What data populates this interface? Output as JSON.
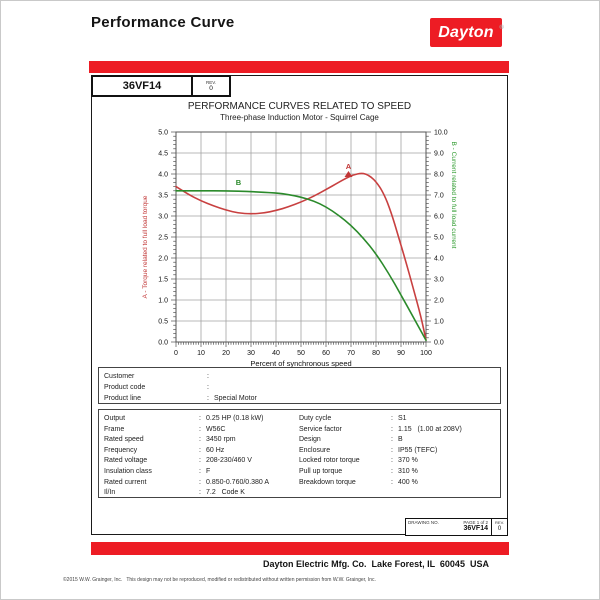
{
  "header": {
    "title": "Performance Curve",
    "brand": "Dayton",
    "brand_reg": "®"
  },
  "model_header": {
    "model": "36VF14",
    "rev_label": "REV.",
    "rev_value": "0"
  },
  "chart_data": {
    "type": "line",
    "title": "PERFORMANCE CURVES RELATED TO SPEED",
    "subtitle": "Three-phase Induction Motor - Squirrel Cage",
    "xlabel": "Percent of synchronous speed",
    "x_range": [
      0,
      100
    ],
    "x_tick_step": 10,
    "x_minor_step": 1,
    "grid": true,
    "grid_color": "#a3a3a3",
    "border_color": "#555555",
    "left_axis": {
      "label": "A - Torque related to full load torque",
      "range": [
        0,
        5
      ],
      "tick_step": 0.5,
      "minor_step": 0.1,
      "color": "#c23737"
    },
    "right_axis": {
      "label": "B - Current related to full load current",
      "range": [
        0,
        10
      ],
      "tick_step": 1,
      "minor_step": 0.2,
      "color": "#2e9b2e"
    },
    "series": [
      {
        "name": "A",
        "meaning": "Torque related to full load torque",
        "axis": "left",
        "color": "#c84040",
        "points": [
          [
            0,
            3.7
          ],
          [
            5,
            3.51
          ],
          [
            10,
            3.36
          ],
          [
            15,
            3.24
          ],
          [
            20,
            3.14
          ],
          [
            25,
            3.07
          ],
          [
            30,
            3.05
          ],
          [
            35,
            3.07
          ],
          [
            40,
            3.13
          ],
          [
            45,
            3.22
          ],
          [
            50,
            3.33
          ],
          [
            55,
            3.47
          ],
          [
            60,
            3.63
          ],
          [
            65,
            3.8
          ],
          [
            68,
            3.9
          ],
          [
            71,
            3.98
          ],
          [
            74,
            4.02
          ],
          [
            76,
            4.0
          ],
          [
            78,
            3.93
          ],
          [
            80,
            3.82
          ],
          [
            83,
            3.55
          ],
          [
            86,
            3.1
          ],
          [
            89,
            2.5
          ],
          [
            92,
            1.9
          ],
          [
            95,
            1.25
          ],
          [
            98,
            0.6
          ],
          [
            100,
            0.05
          ]
        ]
      },
      {
        "name": "B",
        "meaning": "Current related to full load current",
        "axis": "right",
        "color": "#2b8a2b",
        "points": [
          [
            0,
            7.2
          ],
          [
            10,
            7.2
          ],
          [
            20,
            7.2
          ],
          [
            30,
            7.16
          ],
          [
            40,
            7.1
          ],
          [
            45,
            7.02
          ],
          [
            50,
            6.9
          ],
          [
            55,
            6.72
          ],
          [
            60,
            6.44
          ],
          [
            65,
            6.04
          ],
          [
            70,
            5.56
          ],
          [
            75,
            4.94
          ],
          [
            80,
            4.2
          ],
          [
            85,
            3.28
          ],
          [
            90,
            2.24
          ],
          [
            95,
            1.16
          ],
          [
            100,
            0.08
          ]
        ]
      }
    ],
    "annotations": [
      {
        "text": "A",
        "x": 69,
        "y": 4.12,
        "axis": "left",
        "color": "#c23737",
        "arrow": true
      },
      {
        "text": "B",
        "x": 25,
        "y": 3.74,
        "axis": "left",
        "color": "#2b8a2b",
        "arrow": false
      }
    ]
  },
  "customer_info": {
    "separator": ":",
    "rows": [
      {
        "label": "Customer",
        "value": ""
      },
      {
        "label": "Product code",
        "value": ""
      },
      {
        "label": "Product line",
        "value": "Special Motor"
      }
    ]
  },
  "specs": {
    "separator": ":",
    "left": [
      {
        "label": "Output",
        "value": "0.25 HP (0.18 kW)"
      },
      {
        "label": "Frame",
        "value": "W56C"
      },
      {
        "label": "Rated speed",
        "value": "3450 rpm"
      },
      {
        "label": "Frequency",
        "value": "60 Hz"
      },
      {
        "label": "Rated voltage",
        "value": "208-230/460 V"
      },
      {
        "label": "Insulation class",
        "value": "F"
      },
      {
        "label": "Rated current",
        "value": "0.850-0.760/0.380 A"
      },
      {
        "label": "Il/In",
        "value": "7.2   Code K"
      }
    ],
    "right": [
      {
        "label": "Duty cycle",
        "value": "S1"
      },
      {
        "label": "Service factor",
        "value": "1.15   (1.00 at 208V)"
      },
      {
        "label": "Design",
        "value": "B"
      },
      {
        "label": "Enclosure",
        "value": "IP55 (TEFC)"
      },
      {
        "label": "Locked rotor torque",
        "value": "370 %"
      },
      {
        "label": "Pull up torque",
        "value": "310 %"
      },
      {
        "label": "Breakdown torque",
        "value": "400 %"
      }
    ]
  },
  "drawing_box": {
    "drawing_no_label": "DRAWING NO.",
    "page_label": "PAGE 1 of 2",
    "drawing_no": "36VF14",
    "rev_label": "REV.",
    "rev_value": "0"
  },
  "footer": {
    "company": "Dayton Electric Mfg. Co.  Lake Forest, IL  60045  USA",
    "copyright": "©2015 W.W. Grainger, Inc.   This design may not be reproduced, modified or redistributed without written permission from W.W. Grainger, Inc."
  },
  "colors": {
    "brand_red": "#ed1c24",
    "curve_red": "#c84040",
    "curve_green": "#2b8a2b"
  }
}
